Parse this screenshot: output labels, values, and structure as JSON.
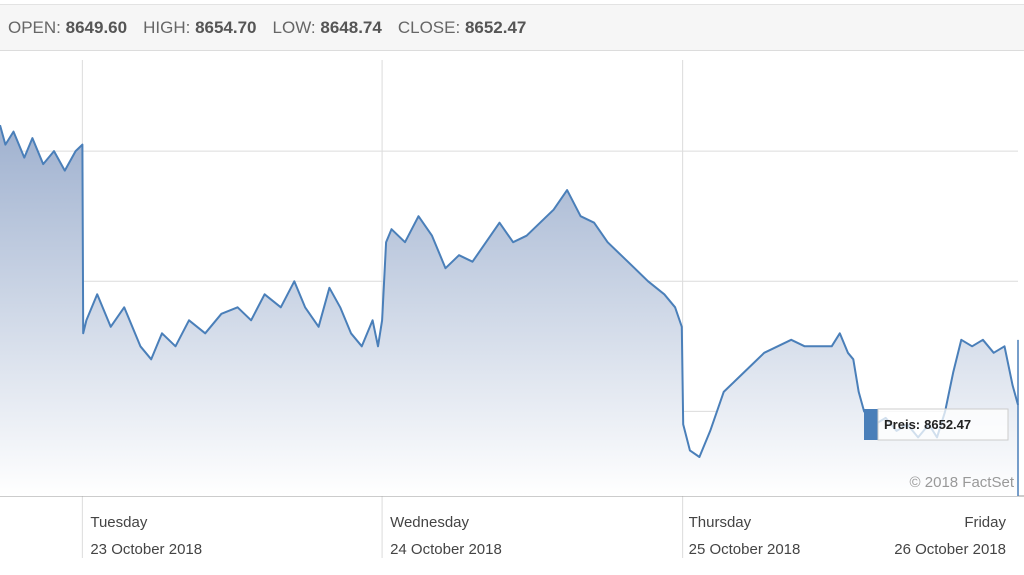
{
  "header": {
    "open_label": "OPEN:",
    "open_value": "8649.60",
    "high_label": "HIGH:",
    "high_value": "8654.70",
    "low_label": "LOW:",
    "low_value": "8648.74",
    "close_label": "CLOSE:",
    "close_value": "8652.47"
  },
  "tooltip": {
    "label": "Preis:",
    "value": "8652.47"
  },
  "watermark": "© 2018 FactSet",
  "colors": {
    "line": "#4a7fb9",
    "area_top": "#9fb1cf",
    "area_bottom": "#ffffff",
    "grid": "#dcdcdc",
    "tooltip_marker": "#4a7fb9"
  },
  "chart_data": {
    "type": "area",
    "title": "",
    "xlabel": "",
    "ylabel": "",
    "grid": true,
    "day_labels": [
      {
        "day": "Tuesday",
        "date": "23 October 2018"
      },
      {
        "day": "Wednesday",
        "date": "24 October 2018"
      },
      {
        "day": "Thursday",
        "date": "25 October 2018"
      },
      {
        "day": "Friday",
        "date": "26 October 2018"
      }
    ],
    "series": [
      {
        "values": [
          [
            0,
            8654.4
          ],
          [
            0.2,
            8654.1
          ],
          [
            0.5,
            8654.3
          ],
          [
            0.9,
            8653.9
          ],
          [
            1.2,
            8654.2
          ],
          [
            1.6,
            8653.8
          ],
          [
            2.0,
            8654.0
          ],
          [
            2.4,
            8653.7
          ],
          [
            2.8,
            8654.0
          ],
          [
            3.05,
            8654.1
          ],
          [
            3.08,
            8651.2
          ],
          [
            3.2,
            8651.4
          ],
          [
            3.6,
            8651.8
          ],
          [
            4.1,
            8651.3
          ],
          [
            4.6,
            8651.6
          ],
          [
            5.2,
            8651.0
          ],
          [
            5.6,
            8650.8
          ],
          [
            6.0,
            8651.2
          ],
          [
            6.5,
            8651.0
          ],
          [
            7.0,
            8651.4
          ],
          [
            7.6,
            8651.2
          ],
          [
            8.2,
            8651.5
          ],
          [
            8.8,
            8651.6
          ],
          [
            9.3,
            8651.4
          ],
          [
            9.8,
            8651.8
          ],
          [
            10.4,
            8651.6
          ],
          [
            10.9,
            8652.0
          ],
          [
            11.3,
            8651.6
          ],
          [
            11.8,
            8651.3
          ],
          [
            12.2,
            8651.9
          ],
          [
            12.6,
            8651.6
          ],
          [
            13.0,
            8651.2
          ],
          [
            13.4,
            8651.0
          ],
          [
            13.8,
            8651.4
          ],
          [
            14.0,
            8651.0
          ],
          [
            14.15,
            8651.4
          ],
          [
            14.3,
            8652.6
          ],
          [
            14.5,
            8652.8
          ],
          [
            15.0,
            8652.6
          ],
          [
            15.5,
            8653.0
          ],
          [
            16.0,
            8652.7
          ],
          [
            16.5,
            8652.2
          ],
          [
            17.0,
            8652.4
          ],
          [
            17.5,
            8652.3
          ],
          [
            18.0,
            8652.6
          ],
          [
            18.5,
            8652.9
          ],
          [
            19.0,
            8652.6
          ],
          [
            19.5,
            8652.7
          ],
          [
            20.0,
            8652.9
          ],
          [
            20.5,
            8653.1
          ],
          [
            21.0,
            8653.4
          ],
          [
            21.5,
            8653.0
          ],
          [
            22.0,
            8652.9
          ],
          [
            22.5,
            8652.6
          ],
          [
            23.0,
            8652.4
          ],
          [
            23.5,
            8652.2
          ],
          [
            24.0,
            8652.0
          ],
          [
            24.6,
            8651.8
          ],
          [
            25.0,
            8651.6
          ],
          [
            25.25,
            8651.3
          ],
          [
            25.3,
            8649.8
          ],
          [
            25.55,
            8649.4
          ],
          [
            25.9,
            8649.3
          ],
          [
            26.3,
            8649.7
          ],
          [
            26.8,
            8650.3
          ],
          [
            27.3,
            8650.5
          ],
          [
            27.8,
            8650.7
          ],
          [
            28.3,
            8650.9
          ],
          [
            28.8,
            8651.0
          ],
          [
            29.3,
            8651.1
          ],
          [
            29.8,
            8651.0
          ],
          [
            30.3,
            8651.0
          ],
          [
            30.8,
            8651.0
          ],
          [
            31.1,
            8651.2
          ],
          [
            31.4,
            8650.9
          ],
          [
            31.6,
            8650.8
          ],
          [
            31.8,
            8650.3
          ],
          [
            32.0,
            8650.0
          ],
          [
            32.4,
            8649.8
          ],
          [
            32.8,
            8649.9
          ],
          [
            33.2,
            8649.7
          ],
          [
            33.6,
            8649.8
          ],
          [
            34.0,
            8649.6
          ],
          [
            34.4,
            8649.8
          ],
          [
            34.7,
            8649.6
          ],
          [
            35.0,
            8650.0
          ],
          [
            35.3,
            8650.6
          ],
          [
            35.6,
            8651.1
          ],
          [
            36.0,
            8651.0
          ],
          [
            36.4,
            8651.1
          ],
          [
            36.8,
            8650.9
          ],
          [
            37.2,
            8651.0
          ],
          [
            37.5,
            8650.4
          ],
          [
            37.7,
            8650.1
          ]
        ]
      }
    ]
  }
}
